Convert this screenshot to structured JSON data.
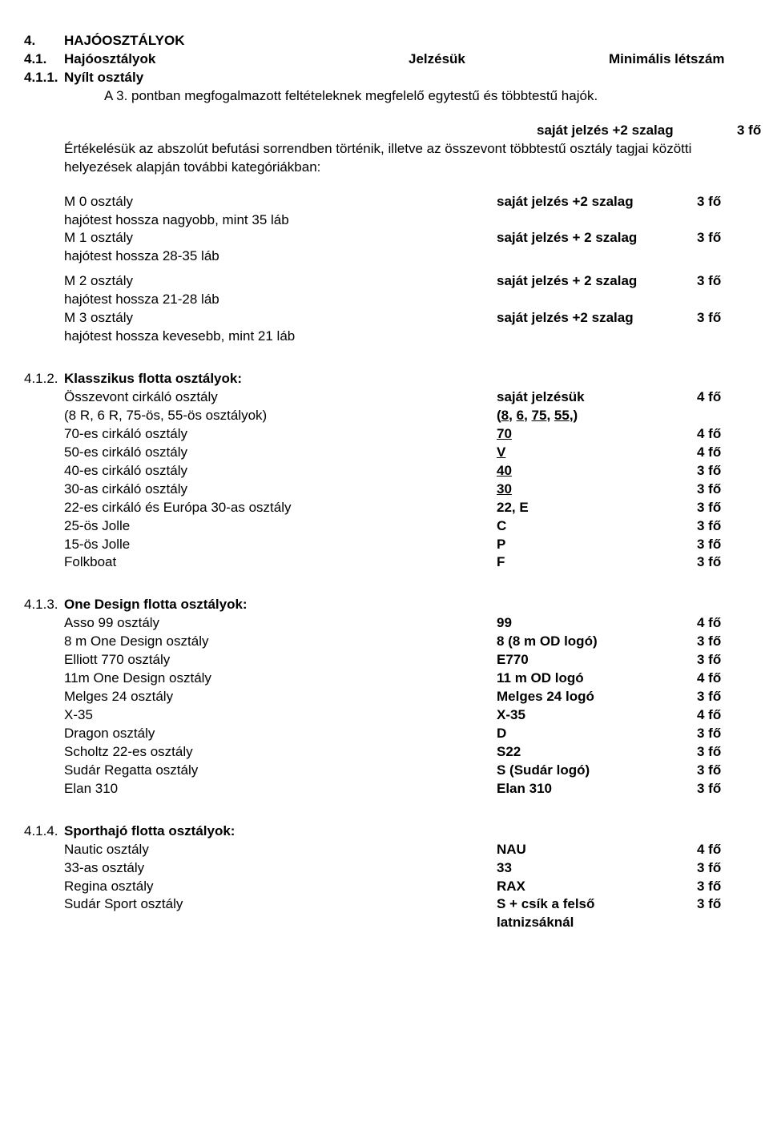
{
  "section4": {
    "num": "4.",
    "title": "HAJÓOSZTÁLYOK",
    "h41_num": "4.1.",
    "h41_title": "Hajóosztályok",
    "h41_col2": "Jelzésük",
    "h41_col3": "Minimális létszám",
    "h411_num": "4.1.1.",
    "h411_title": "Nyílt osztály",
    "h411_line": "A 3. pontban megfogalmazott feltételeknek megfelelő egytestű és többtestű hajók.",
    "open_marking": "saját jelzés +2 szalag",
    "open_min": "3 fő",
    "open_desc": "Értékelésük az abszolút befutási sorrendben történik, illetve az összevont többtestű osztály tagjai közötti helyezések alapján további kategóriákban:",
    "m_classes": [
      {
        "name": "M 0 osztály",
        "desc": "hajótest hossza nagyobb, mint 35 láb",
        "mark": "saját jelzés +2 szalag",
        "min": "3 fő"
      },
      {
        "name": "M 1 osztály",
        "desc": "hajótest  hossza 28-35 láb",
        "mark": "saját jelzés + 2 szalag",
        "min": "3 fő"
      },
      {
        "name": "M 2 osztály",
        "desc": "hajótest hossza 21-28 láb",
        "mark": "saját jelzés + 2 szalag",
        "min": "3 fő"
      },
      {
        "name": "M 3 osztály",
        "desc": "hajótest hossza kevesebb, mint 21 láb",
        "mark": "saját jelzés +2 szalag",
        "min": "3 fő"
      }
    ],
    "h412_num": "4.1.2.",
    "h412_title": "Klasszikus flotta osztályok:",
    "klass_rows": [
      {
        "name": "Összevont cirkáló osztály",
        "mark": "saját jelzésük",
        "min": "4 fő",
        "bold": true,
        "underline": false
      },
      {
        "name": "(8 R, 6 R, 75-ös, 55-ös osztályok)",
        "mark": "(8, 6, 75, 55,)",
        "min": "",
        "bold": true,
        "underline": true,
        "subparts": [
          "8",
          "6",
          "75",
          "55"
        ]
      },
      {
        "name": "70-es cirkáló osztály",
        "mark": "70",
        "min": "4 fő",
        "bold": true,
        "underline": true
      },
      {
        "name": "50-es cirkáló osztály",
        "mark": "V",
        "min": "4 fő",
        "bold": true,
        "underline": true
      },
      {
        "name": "40-es cirkáló osztály",
        "mark": "40",
        "min": "3 fő",
        "bold": true,
        "underline": true
      },
      {
        "name": "30-as cirkáló osztály",
        "mark": "30",
        "min": "3 fő",
        "bold": true,
        "underline": true
      },
      {
        "name": "22-es cirkáló és Európa 30-as osztály",
        "mark": "22, E",
        "min": "3 fő",
        "bold": true,
        "underline": false
      },
      {
        "name": "25-ös Jolle",
        "mark": "C",
        "min": "3 fő",
        "bold": true,
        "underline": false
      },
      {
        "name": "15-ös Jolle",
        "mark": "P",
        "min": "3 fő",
        "bold": true,
        "underline": false
      },
      {
        "name": "Folkboat",
        "mark": "F",
        "min": "3 fő",
        "bold": true,
        "underline": false
      }
    ],
    "h413_num": "4.1.3.",
    "h413_title": "One Design flotta osztályok:",
    "od_rows": [
      {
        "name": "Asso 99 osztály",
        "mark": "99",
        "min": "4 fő"
      },
      {
        "name": "8 m One Design osztály",
        "mark": "8 (8 m OD logó)",
        "min": "3 fő"
      },
      {
        "name": "Elliott 770 osztály",
        "mark": "E770",
        "min": "3 fő"
      },
      {
        "name": "11m One Design osztály",
        "mark": "11 m OD logó",
        "min": "4 fő"
      },
      {
        "name": "Melges 24 osztály",
        "mark": "Melges 24 logó",
        "min": "3 fő"
      },
      {
        "name": "X-35",
        "mark": "X-35",
        "min": "4 fő"
      },
      {
        "name": "Dragon osztály",
        "mark": "D",
        "min": "3 fő"
      },
      {
        "name": "Scholtz 22-es osztály",
        "mark": "S22",
        "min": "3 fő"
      },
      {
        "name": "Sudár Regatta osztály",
        "mark": "S (Sudár logó)",
        "min": "3 fő"
      },
      {
        "name": "Elan 310",
        "mark": " Elan 310",
        "min": "3 fő"
      }
    ],
    "h414_num": "4.1.4.",
    "h414_title": "Sporthajó flotta osztályok:",
    "sport_rows": [
      {
        "name": "Nautic osztály",
        "mark": "NAU",
        "min": "4 fő"
      },
      {
        "name": "33-as osztály",
        "mark": "33",
        "min": "3 fő"
      },
      {
        "name": "Regina osztály",
        "mark": "RAX",
        "min": "3 fő"
      },
      {
        "name": "Sudár Sport osztály",
        "mark": "S + csík a felső latnizsáknál",
        "min": "3 fő"
      }
    ]
  }
}
